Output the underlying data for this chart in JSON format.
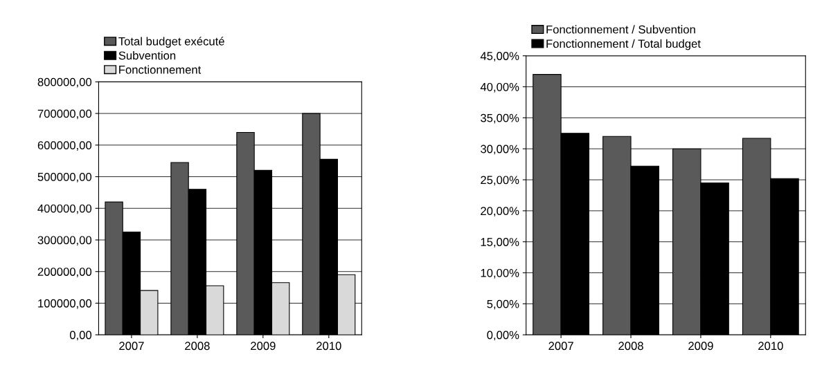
{
  "chart_data": [
    {
      "type": "bar",
      "categories": [
        "2007",
        "2008",
        "2009",
        "2010"
      ],
      "series": [
        {
          "name": "Total budget exécuté",
          "color": "#5a5a5a",
          "values": [
            420000,
            545000,
            640000,
            700000
          ]
        },
        {
          "name": "Subvention",
          "color": "#000000",
          "values": [
            325000,
            460000,
            520000,
            555000
          ]
        },
        {
          "name": "Fonctionnement",
          "color": "#d9d9d9",
          "values": [
            140000,
            155000,
            165000,
            190000
          ]
        }
      ],
      "ylim": [
        0,
        800000
      ],
      "yticks": [
        {
          "value": 0,
          "label": "0,00"
        },
        {
          "value": 100000,
          "label": "100000,00"
        },
        {
          "value": 200000,
          "label": "200000,00"
        },
        {
          "value": 300000,
          "label": "300000,00"
        },
        {
          "value": 400000,
          "label": "400000,00"
        },
        {
          "value": 500000,
          "label": "500000,00"
        },
        {
          "value": 600000,
          "label": "600000,00"
        },
        {
          "value": 700000,
          "label": "700000,00"
        },
        {
          "value": 800000,
          "label": "800000,00"
        }
      ],
      "grid": "y",
      "legend": "top left"
    },
    {
      "type": "bar",
      "categories": [
        "2007",
        "2008",
        "2009",
        "2010"
      ],
      "series": [
        {
          "name": "Fonctionnement / Subvention",
          "color": "#5a5a5a",
          "values": [
            42.0,
            32.0,
            30.0,
            31.7
          ]
        },
        {
          "name": "Fonctionnement / Total budget",
          "color": "#000000",
          "values": [
            32.5,
            27.2,
            24.5,
            25.2
          ]
        }
      ],
      "ylim": [
        0,
        45
      ],
      "yticks": [
        {
          "value": 0,
          "label": "0,00%"
        },
        {
          "value": 5,
          "label": "5,00%"
        },
        {
          "value": 10,
          "label": "10,00%"
        },
        {
          "value": 15,
          "label": "15,00%"
        },
        {
          "value": 20,
          "label": "20,00%"
        },
        {
          "value": 25,
          "label": "25,00%"
        },
        {
          "value": 30,
          "label": "30,00%"
        },
        {
          "value": 35,
          "label": "35,00%"
        },
        {
          "value": 40,
          "label": "40,00%"
        },
        {
          "value": 45,
          "label": "45,00%"
        }
      ],
      "grid": "y",
      "legend": "top left"
    }
  ]
}
